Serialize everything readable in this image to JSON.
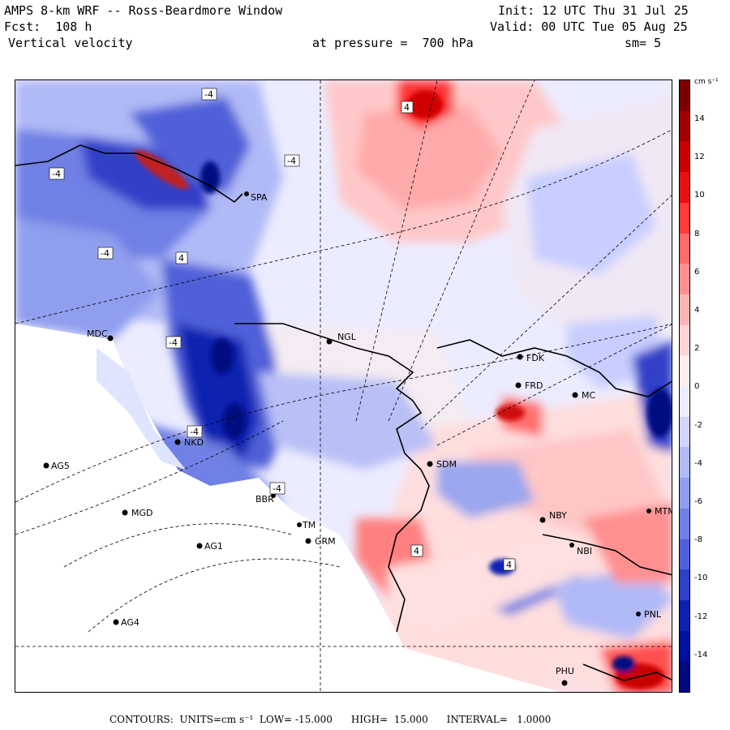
{
  "header": {
    "title": "AMPS 8-km WRF -- Ross-Beardmore Window",
    "fcst": "Fcst:  108 h",
    "field": "Vertical velocity",
    "init": "Init: 12 UTC Thu 31 Jul 25",
    "valid": "Valid: 00 UTC Tue 05 Aug 25",
    "level": "at pressure =  700 hPa",
    "smooth": "sm= 5"
  },
  "colorbar": {
    "units": "cm s⁻¹",
    "tick_labels": [
      "14",
      "12",
      "10",
      "8",
      "6",
      "4",
      "2",
      "0",
      "-2",
      "-4",
      "-6",
      "-8",
      "-10",
      "-12",
      "-14"
    ],
    "colors_top_to_bottom": [
      "#7a0000",
      "#a00000",
      "#c80000",
      "#e81010",
      "#ff3a3a",
      "#ff6a6a",
      "#ff9090",
      "#ffb4b4",
      "#ffd4d4",
      "#ffecec",
      "#ececff",
      "#d0d6ff",
      "#b0baf6",
      "#909eee",
      "#7080e4",
      "#5060d8",
      "#3040c8",
      "#1020b0",
      "#0010a0",
      "#000880"
    ]
  },
  "footer": {
    "text": "CONTOURS:  UNITS=cm s⁻¹  LOW= -15.000      HIGH=  15.000      INTERVAL=   1.0000"
  },
  "stations": [
    {
      "id": "MDC"
    },
    {
      "id": "NGL"
    },
    {
      "id": "FDK"
    },
    {
      "id": "FRD"
    },
    {
      "id": "MC"
    },
    {
      "id": "AG5"
    },
    {
      "id": "NKD"
    },
    {
      "id": "SDM"
    },
    {
      "id": "MGD"
    },
    {
      "id": "NBY"
    },
    {
      "id": "AG1"
    },
    {
      "id": "GRM"
    },
    {
      "id": "AG4"
    },
    {
      "id": "PHU"
    },
    {
      "id": "SPA"
    },
    {
      "id": "TM"
    },
    {
      "id": "BBR"
    },
    {
      "id": "NBI"
    },
    {
      "id": "PNL"
    },
    {
      "id": "MTM"
    }
  ],
  "contour_labels": [
    "-4",
    "4",
    "-4",
    "-4",
    "4",
    "-4",
    "-4",
    "4",
    "-4",
    "4",
    "-4"
  ]
}
